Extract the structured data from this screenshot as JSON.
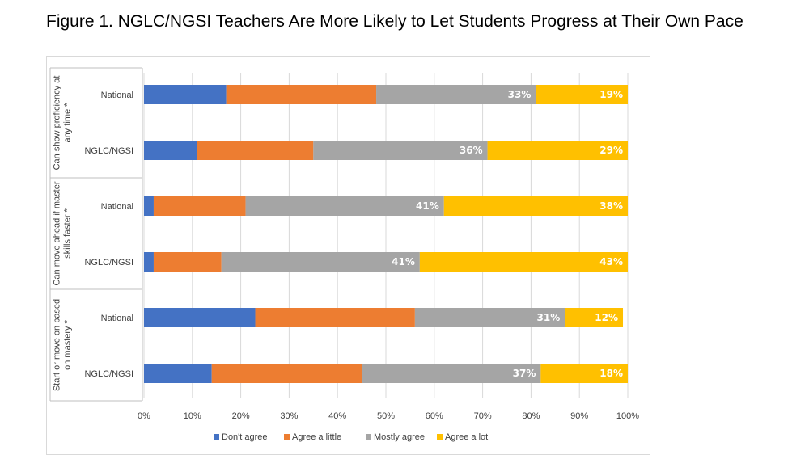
{
  "chart_data": {
    "type": "bar",
    "orientation": "horizontal",
    "stacked": true,
    "title": "Figure 1. NGLC/NGSI Teachers Are More Likely to Let Students Progress at Their Own Pace",
    "groups": [
      {
        "label": "Can show proficiency at any time *",
        "categories": [
          "National",
          "NGLC/NGSI"
        ]
      },
      {
        "label": "Can move ahead if master skills faster *",
        "categories": [
          "National",
          "NGLC/NGSI"
        ]
      },
      {
        "label": "Start or move on based on mastery *",
        "categories": [
          "National",
          "NGLC/NGSI"
        ]
      }
    ],
    "categories": [
      "National",
      "NGLC/NGSI",
      "National",
      "NGLC/NGSI",
      "National",
      "NGLC/NGSI"
    ],
    "series": [
      {
        "name": "Don't agree",
        "color": "#4472C4",
        "values": [
          17,
          11,
          2,
          2,
          23,
          14
        ]
      },
      {
        "name": "Agree a little",
        "color": "#ED7D31",
        "values": [
          31,
          24,
          19,
          14,
          33,
          31
        ]
      },
      {
        "name": "Mostly agree",
        "color": "#A5A5A5",
        "values": [
          33,
          36,
          41,
          41,
          31,
          37
        ]
      },
      {
        "name": "Agree a lot",
        "color": "#FFC000",
        "values": [
          19,
          29,
          38,
          43,
          12,
          18
        ]
      }
    ],
    "data_labels": {
      "Mostly agree": [
        "33%",
        "36%",
        "41%",
        "41%",
        "31%",
        "37%"
      ],
      "Agree a lot": [
        "19%",
        "29%",
        "38%",
        "43%",
        "12%",
        "18%"
      ]
    },
    "xlim": [
      0,
      100
    ],
    "x_ticks": [
      0,
      10,
      20,
      30,
      40,
      50,
      60,
      70,
      80,
      90,
      100
    ],
    "x_tick_suffix": "%",
    "grid": true,
    "legend_position": "bottom"
  }
}
